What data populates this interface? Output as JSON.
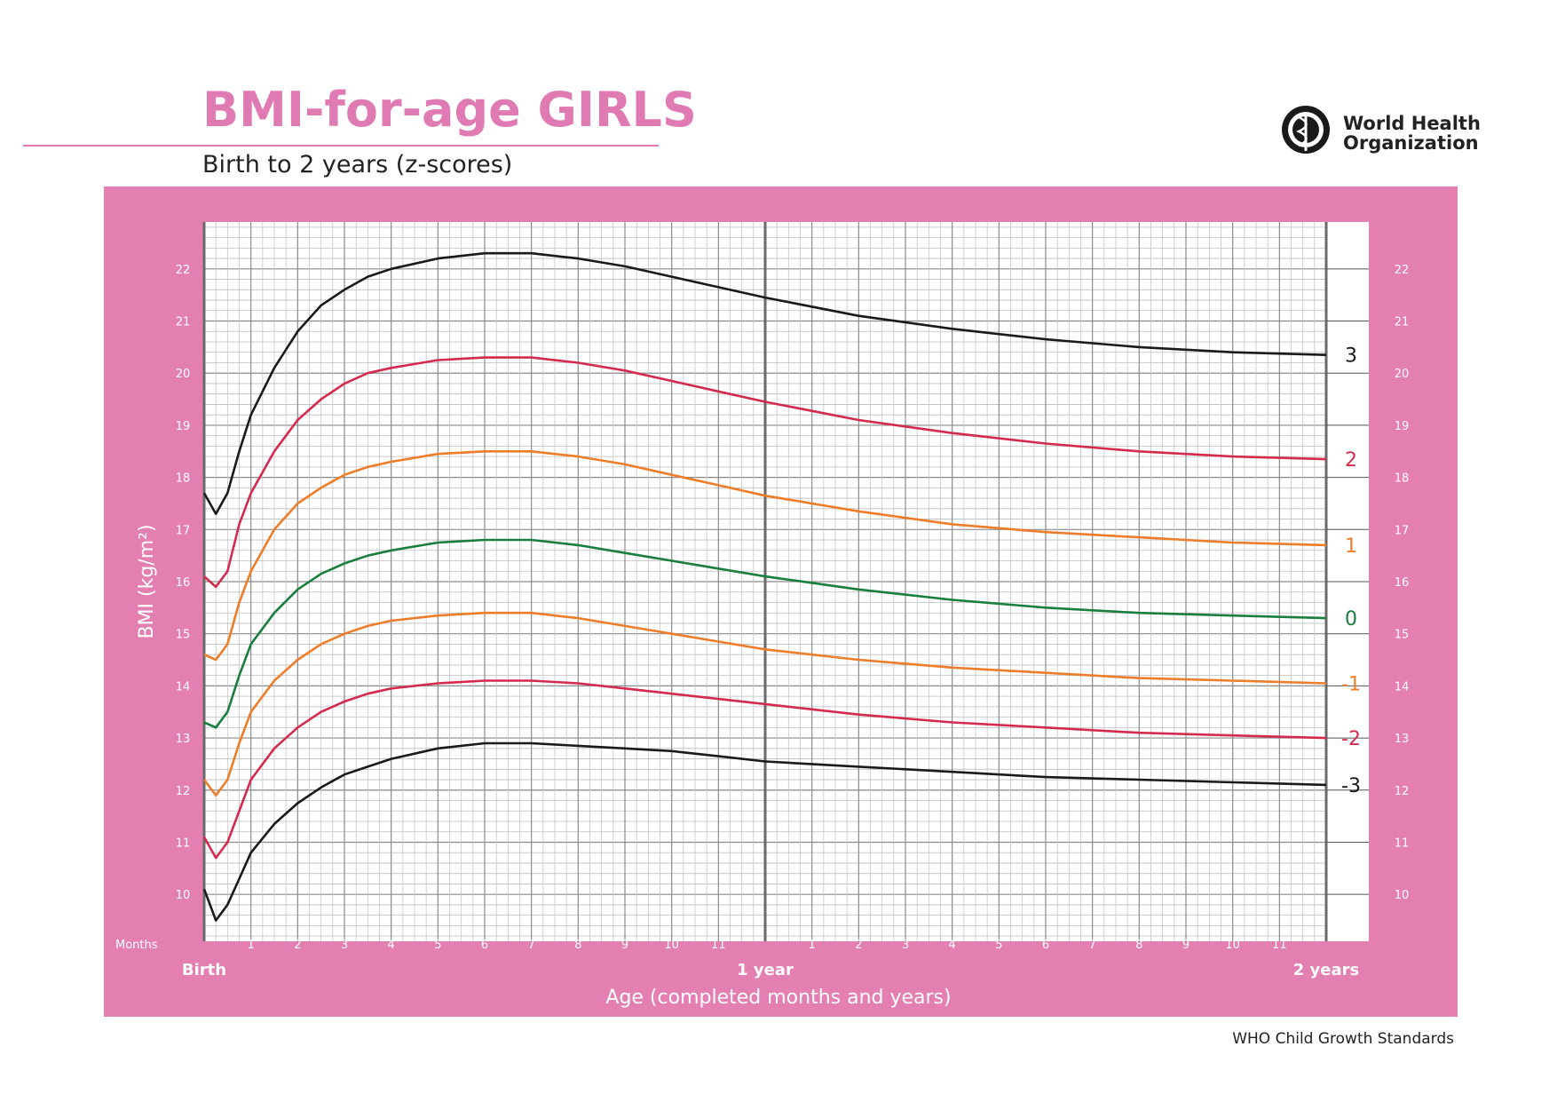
{
  "header": {
    "title": "BMI-for-age GIRLS",
    "subtitle": "Birth to 2 years (z-scores)",
    "org_line1": "World Health",
    "org_line2": "Organization"
  },
  "footer": {
    "text": "WHO Child Growth Standards"
  },
  "colors": {
    "brand_pink": "#e07ab3",
    "panel_pink": "#e47fb1",
    "line_black": "#1a1a1a",
    "line_red": "#d42a4e",
    "line_orange": "#ee7d2a",
    "line_green": "#1a7e3c"
  },
  "chart_data": {
    "type": "line",
    "title": "BMI-for-age GIRLS",
    "subtitle": "Birth to 2 years (z-scores)",
    "xlabel": "Age (completed months and years)",
    "ylabel": "BMI (kg/m²)",
    "x_prefix_label": "Months",
    "x_major_labels": [
      "Birth",
      "1 year",
      "2 years"
    ],
    "x_month_ticks": [
      "1",
      "2",
      "3",
      "4",
      "5",
      "6",
      "7",
      "8",
      "9",
      "10",
      "11"
    ],
    "y_ticks": [
      10,
      11,
      12,
      13,
      14,
      15,
      16,
      17,
      18,
      19,
      20,
      21,
      22
    ],
    "xlim": [
      0,
      24
    ],
    "ylim": [
      9.1,
      22.9
    ],
    "grid": true,
    "x": [
      0,
      0.25,
      0.5,
      0.75,
      1,
      1.5,
      2,
      2.5,
      3,
      3.5,
      4,
      5,
      6,
      7,
      8,
      9,
      10,
      11,
      12,
      14,
      16,
      18,
      20,
      22,
      24
    ],
    "series": [
      {
        "name": "3",
        "color": "#1a1a1a",
        "values": [
          17.7,
          17.3,
          17.7,
          18.5,
          19.2,
          20.1,
          20.8,
          21.3,
          21.6,
          21.85,
          22.0,
          22.2,
          22.3,
          22.3,
          22.2,
          22.05,
          21.85,
          21.65,
          21.45,
          21.1,
          20.85,
          20.65,
          20.5,
          20.4,
          20.35
        ]
      },
      {
        "name": "2",
        "color": "#d42a4e",
        "values": [
          16.1,
          15.9,
          16.2,
          17.1,
          17.7,
          18.5,
          19.1,
          19.5,
          19.8,
          20.0,
          20.1,
          20.25,
          20.3,
          20.3,
          20.2,
          20.05,
          19.85,
          19.65,
          19.45,
          19.1,
          18.85,
          18.65,
          18.5,
          18.4,
          18.35
        ]
      },
      {
        "name": "1",
        "color": "#ee7d2a",
        "values": [
          14.6,
          14.5,
          14.8,
          15.6,
          16.2,
          17.0,
          17.5,
          17.8,
          18.05,
          18.2,
          18.3,
          18.45,
          18.5,
          18.5,
          18.4,
          18.25,
          18.05,
          17.85,
          17.65,
          17.35,
          17.1,
          16.95,
          16.85,
          16.75,
          16.7
        ]
      },
      {
        "name": "0",
        "color": "#1a7e3c",
        "values": [
          13.3,
          13.2,
          13.5,
          14.2,
          14.8,
          15.4,
          15.85,
          16.15,
          16.35,
          16.5,
          16.6,
          16.75,
          16.8,
          16.8,
          16.7,
          16.55,
          16.4,
          16.25,
          16.1,
          15.85,
          15.65,
          15.5,
          15.4,
          15.35,
          15.3
        ]
      },
      {
        "name": "-1",
        "color": "#ee7d2a",
        "values": [
          12.2,
          11.9,
          12.2,
          12.9,
          13.5,
          14.1,
          14.5,
          14.8,
          15.0,
          15.15,
          15.25,
          15.35,
          15.4,
          15.4,
          15.3,
          15.15,
          15.0,
          14.85,
          14.7,
          14.5,
          14.35,
          14.25,
          14.15,
          14.1,
          14.05
        ]
      },
      {
        "name": "-2",
        "color": "#d42a4e",
        "values": [
          11.1,
          10.7,
          11.0,
          11.6,
          12.2,
          12.8,
          13.2,
          13.5,
          13.7,
          13.85,
          13.95,
          14.05,
          14.1,
          14.1,
          14.05,
          13.95,
          13.85,
          13.75,
          13.65,
          13.45,
          13.3,
          13.2,
          13.1,
          13.05,
          13.0
        ]
      },
      {
        "name": "-3",
        "color": "#1a1a1a",
        "values": [
          10.1,
          9.5,
          9.8,
          10.3,
          10.8,
          11.35,
          11.75,
          12.05,
          12.3,
          12.45,
          12.6,
          12.8,
          12.9,
          12.9,
          12.85,
          12.8,
          12.75,
          12.65,
          12.55,
          12.45,
          12.35,
          12.25,
          12.2,
          12.15,
          12.1
        ]
      }
    ]
  }
}
